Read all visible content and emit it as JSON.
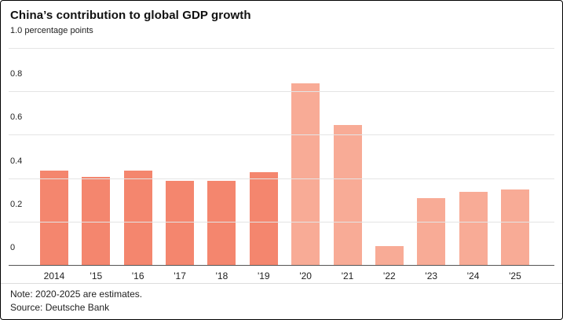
{
  "chart": {
    "title": "China’s contribution to global GDP growth"
  },
  "chart_data": {
    "type": "bar",
    "title": "China’s contribution to global GDP growth",
    "xlabel": "",
    "ylabel": "percentage points",
    "ylim": [
      0,
      1.0
    ],
    "grid": true,
    "categories": [
      "2014",
      "'15",
      "'16",
      "'17",
      "'18",
      "'19",
      "'20",
      "'21",
      "'22",
      "'23",
      "'24",
      "'25"
    ],
    "values": [
      0.44,
      0.41,
      0.44,
      0.39,
      0.39,
      0.43,
      0.84,
      0.65,
      0.09,
      0.31,
      0.34,
      0.35
    ],
    "estimate_from_index": 6,
    "ticks": [
      {
        "value": 1.0,
        "label": "1.0 percentage points"
      },
      {
        "value": 0.8,
        "label": "0.8"
      },
      {
        "value": 0.6,
        "label": "0.6"
      },
      {
        "value": 0.4,
        "label": "0.4"
      },
      {
        "value": 0.2,
        "label": "0.2"
      },
      {
        "value": 0.0,
        "label": "0"
      }
    ]
  },
  "colors": {
    "actual_bar": "#f4866e",
    "estimate_bar": "#f8ab96",
    "gridline": "#e4e4e4",
    "baseline": "#555555"
  },
  "footer": {
    "note": "Note: 2020-2025 are estimates.",
    "source": "Source: Deutsche Bank"
  }
}
